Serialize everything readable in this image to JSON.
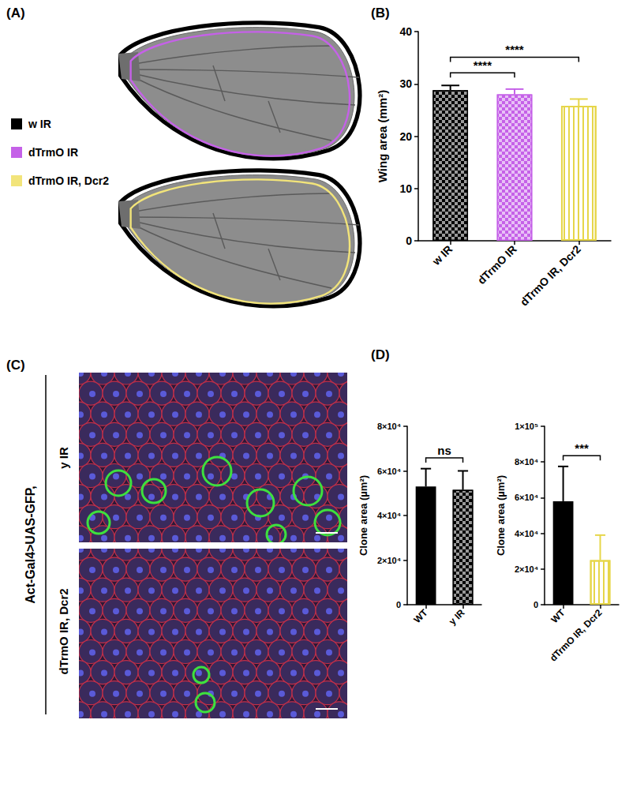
{
  "panel_labels": [
    "(A)",
    "(B)",
    "(C)",
    "(D)"
  ],
  "panel_A": {
    "legend": [
      {
        "name": "w IR",
        "color": "#000000"
      },
      {
        "name": "dTrmO IR",
        "color": "#c561e8"
      },
      {
        "name": "dTrmO IR, Dcr2",
        "color": "#f2e47a"
      }
    ]
  },
  "panel_C": {
    "title": "Act-Gal4>UAS-GFP,",
    "rows": [
      "y IR",
      "dTrmO IR, Dcr2"
    ]
  },
  "chart_data": [
    {
      "type": "bar",
      "categories": [
        "w IR",
        "dTrmO IR",
        "dTrmO IR, Dcr2"
      ],
      "values": [
        28.8,
        28.0,
        25.8
      ],
      "errors": [
        0.9,
        1.0,
        1.3
      ],
      "colors": [
        "#000000",
        "#c561e8",
        "#e6d64a"
      ],
      "y_label": "Wing area (mm²)",
      "ylim": [
        0,
        40
      ],
      "yticks": [
        0,
        10,
        20,
        30,
        40
      ],
      "grid": false,
      "annotations": [
        {
          "from": 0,
          "to": 1,
          "text": "****"
        },
        {
          "from": 0,
          "to": 2,
          "text": "****"
        }
      ]
    },
    {
      "type": "bar",
      "categories": [
        "WT",
        "y IR"
      ],
      "values": [
        53000,
        51500
      ],
      "errors": [
        8000,
        8500
      ],
      "colors": [
        "#000000",
        "#000000"
      ],
      "y_label": "Clone area (µm²)",
      "ylim": [
        0,
        80000
      ],
      "yticks": [
        0,
        {
          "value": 20000,
          "label": "2×10⁴"
        },
        {
          "value": 40000,
          "label": "4×10⁴"
        },
        {
          "value": 60000,
          "label": "6×10⁴"
        },
        {
          "value": 80000,
          "label": "8×10⁴"
        }
      ],
      "grid": false,
      "annotations": [
        {
          "from": 0,
          "to": 1,
          "text": "ns"
        }
      ]
    },
    {
      "type": "bar",
      "categories": [
        "WT",
        "dTrmO IR, Dcr2"
      ],
      "values": [
        58000,
        25000
      ],
      "errors": [
        19500,
        14000
      ],
      "colors": [
        "#000000",
        "#e6d64a"
      ],
      "y_label": "Clone area (µm²)",
      "ylim": [
        0,
        100000
      ],
      "yticks": [
        0,
        {
          "value": 20000,
          "label": "2×10⁴"
        },
        {
          "value": 40000,
          "label": "4×10⁴"
        },
        {
          "value": 60000,
          "label": "6×10⁴"
        },
        {
          "value": 80000,
          "label": "8×10⁴"
        },
        {
          "value": 100000,
          "label": "1×10⁵"
        }
      ],
      "grid": false,
      "annotations": [
        {
          "from": 0,
          "to": 1,
          "text": "***"
        }
      ]
    }
  ]
}
